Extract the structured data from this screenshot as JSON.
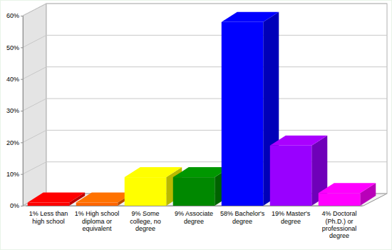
{
  "chart_data": {
    "type": "bar",
    "categories": [
      "1% Less than high school",
      "1% High school diploma or equivalent",
      "9% Some college, no degree",
      "9% Associate degree",
      "58% Bachelor's degree",
      "19% Master's degree",
      "4% Doctoral (Ph.D.) or professional degree"
    ],
    "values": [
      1,
      1,
      9,
      9,
      58,
      19,
      4
    ],
    "colors": [
      "#ff0000",
      "#ff6600",
      "#ffff00",
      "#008800",
      "#0000ff",
      "#9900ff",
      "#ff00ff"
    ],
    "ylim": [
      0,
      60
    ],
    "yticks": [
      {
        "value": 0,
        "label": "0%"
      },
      {
        "value": 10,
        "label": "10%"
      },
      {
        "value": 20,
        "label": "20%"
      },
      {
        "value": 30,
        "label": "30%"
      },
      {
        "value": 40,
        "label": "40%"
      },
      {
        "value": 50,
        "label": "50%"
      },
      {
        "value": 60,
        "label": "60%"
      }
    ],
    "grid": true
  }
}
